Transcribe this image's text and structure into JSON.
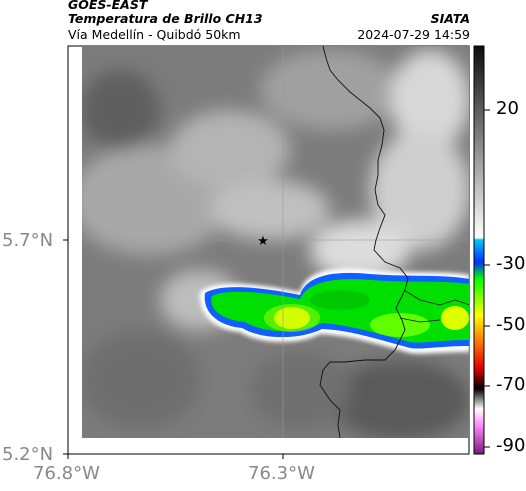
{
  "header": {
    "line1": "GOES-EAST",
    "line2": "Temperatura de Brillo CH13",
    "line3": "Vía Medellín - Quibdó 50km",
    "right1": "SIATA",
    "right2": "2024-07-29 14:59"
  },
  "axes": {
    "lat_ticks": [
      "5.7°N",
      "5.2°N"
    ],
    "lon_ticks": [
      "76.8°W",
      "76.3°W"
    ]
  },
  "colorbar": {
    "ticks": [
      "20",
      "-30",
      "-50",
      "-70",
      "-90"
    ],
    "colors": [
      "#111111",
      "#ffffff",
      "#00c0ff",
      "#00ff00",
      "#ffff00",
      "#ff0000",
      "#ffffff",
      "#cc44cc"
    ]
  },
  "map": {
    "marker_icon": "star-icon",
    "background_color": "#7a7a7a"
  }
}
